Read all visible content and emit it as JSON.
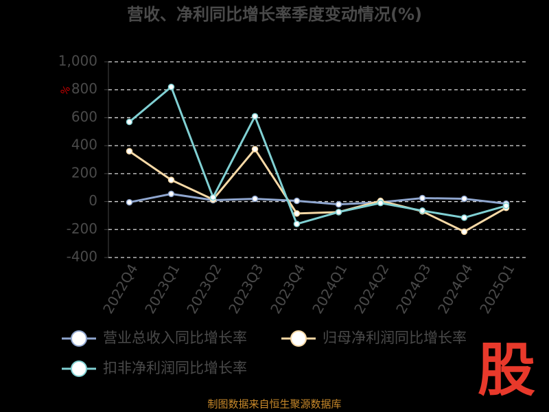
{
  "chart_data": {
    "type": "line",
    "title": "营收、净利同比增长率季度变动情况(%)",
    "y_unit": "%",
    "categories": [
      "2022Q4",
      "2023Q1",
      "2023Q2",
      "2023Q3",
      "2023Q4",
      "2024Q1",
      "2024Q2",
      "2024Q3",
      "2024Q4",
      "2025Q1"
    ],
    "series": [
      {
        "name": "营业总收入同比增长率",
        "color": "#8fa6cf",
        "values": [
          -5,
          55,
          10,
          20,
          5,
          -20,
          -5,
          25,
          20,
          -15
        ]
      },
      {
        "name": "归母净利润同比增长率",
        "color": "#f7d9a6",
        "values": [
          360,
          155,
          15,
          375,
          -85,
          -75,
          5,
          -70,
          -215,
          -45
        ]
      },
      {
        "name": "扣非净利润同比增长率",
        "color": "#80d0d3",
        "values": [
          570,
          820,
          30,
          610,
          -160,
          -75,
          -10,
          -65,
          -115,
          -30
        ]
      }
    ],
    "ylim": [
      -400,
      1000
    ],
    "yticks": [
      -400,
      -200,
      0,
      200,
      400,
      600,
      800,
      {
        "value": 1000,
        "label": "1,000"
      }
    ],
    "grid": true,
    "source": "制图数据来自恒生聚源数据库",
    "logo": "股"
  }
}
